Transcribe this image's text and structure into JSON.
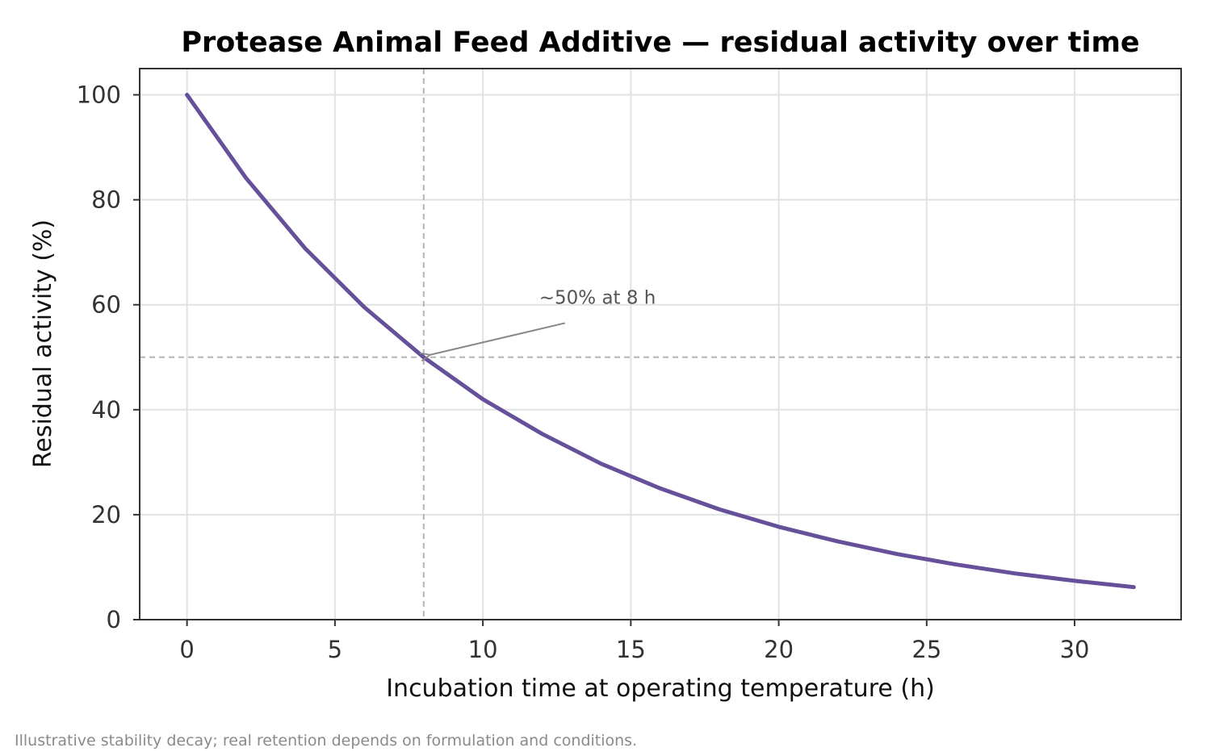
{
  "chart_data": {
    "type": "line",
    "title": "Protease Animal Feed Additive — residual activity over time",
    "xlabel": "Incubation time at operating temperature (h)",
    "ylabel": "Residual activity (%)",
    "xlim": [
      -1.6,
      33.6
    ],
    "ylim": [
      0,
      105
    ],
    "xticks": [
      0,
      5,
      10,
      15,
      20,
      25,
      30
    ],
    "yticks": [
      0,
      20,
      40,
      60,
      80,
      100
    ],
    "grid": true,
    "legend": "none",
    "series": [
      {
        "color": "#67509a",
        "x": [
          0,
          2,
          4,
          6,
          8,
          10,
          12,
          14,
          16,
          18,
          20,
          22,
          24,
          26,
          28,
          30,
          32
        ],
        "y": [
          100,
          84.1,
          70.7,
          59.5,
          50.0,
          42.0,
          35.4,
          29.7,
          25.0,
          21.0,
          17.7,
          14.9,
          12.5,
          10.5,
          8.8,
          7.4,
          6.2
        ]
      }
    ],
    "reference_lines": {
      "x": 8,
      "y": 50,
      "color": "#b5b5b5"
    },
    "annotation": {
      "text": "~50% at 8 h",
      "point": [
        8,
        50
      ],
      "text_at": [
        11.9,
        60.2
      ]
    },
    "footnote": "Illustrative stability decay; real retention depends on formulation and conditions."
  }
}
